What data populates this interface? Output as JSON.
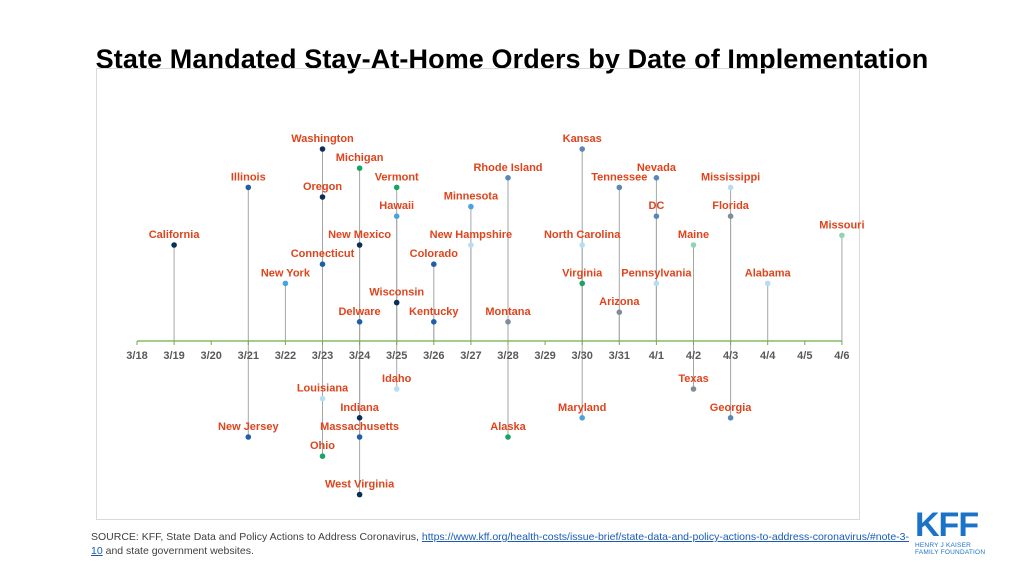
{
  "title": "State Mandated Stay-At-Home Orders by Date of Implementation",
  "source": {
    "prefix": "SOURCE: KFF, State Data and Policy Actions to Address Coronavirus, ",
    "link_text": "https://www.kff.org/health-costs/issue-brief/state-data-and-policy-actions-to-address-coronavirus/#note-3-10",
    "suffix": " and state government websites."
  },
  "logo": {
    "mark": "KFF",
    "line1": "HENRY J KAISER",
    "line2": "FAMILY FOUNDATION"
  },
  "colors": {
    "label": "#e0441c",
    "axis": "#70ad47",
    "stem": "#a6a6a6",
    "tick_label": "#595959",
    "navy": "#0b2e59",
    "blue": "#1f5fa8",
    "sky": "#4aa3df",
    "pale": "#b7dcf4",
    "green": "#19a463",
    "mint": "#8fd4b4",
    "gray": "#7f8c99",
    "steel": "#5b87b8",
    "logo": "#1b73c9"
  },
  "chart_data": {
    "type": "scatter",
    "title": "State Mandated Stay-At-Home Orders by Date of Implementation",
    "xlabel": "",
    "ylabel": "",
    "x_ticks": [
      "3/18",
      "3/19",
      "3/20",
      "3/21",
      "3/22",
      "3/23",
      "3/24",
      "3/25",
      "3/26",
      "3/27",
      "3/28",
      "3/29",
      "3/30",
      "3/31",
      "4/1",
      "4/2",
      "4/3",
      "4/4",
      "4/5",
      "4/6"
    ],
    "grid": false,
    "legend": "none",
    "points": [
      {
        "state": "California",
        "date": "3/19",
        "level": 5,
        "color": "navy"
      },
      {
        "state": "Illinois",
        "date": "3/21",
        "level": 8,
        "color": "blue"
      },
      {
        "state": "New Jersey",
        "date": "3/21",
        "level": -5,
        "color": "blue"
      },
      {
        "state": "New York",
        "date": "3/22",
        "level": 3,
        "color": "sky"
      },
      {
        "state": "Washington",
        "date": "3/23",
        "level": 10,
        "color": "navy"
      },
      {
        "state": "Oregon",
        "date": "3/23",
        "level": 7.5,
        "color": "navy"
      },
      {
        "state": "Connecticut",
        "date": "3/23",
        "level": 4,
        "color": "blue"
      },
      {
        "state": "Louisiana",
        "date": "3/23",
        "level": -3,
        "color": "pale"
      },
      {
        "state": "Ohio",
        "date": "3/23",
        "level": -6,
        "color": "green"
      },
      {
        "state": "Michigan",
        "date": "3/24",
        "level": 9,
        "color": "green"
      },
      {
        "state": "New Mexico",
        "date": "3/24",
        "level": 5,
        "color": "navy"
      },
      {
        "state": "Delware",
        "date": "3/24",
        "level": 1,
        "color": "blue"
      },
      {
        "state": "Indiana",
        "date": "3/24",
        "level": -4,
        "color": "navy"
      },
      {
        "state": "Massachusetts",
        "date": "3/24",
        "level": -5,
        "color": "blue"
      },
      {
        "state": "West Virginia",
        "date": "3/24",
        "level": -8,
        "color": "navy"
      },
      {
        "state": "Vermont",
        "date": "3/25",
        "level": 8,
        "color": "green"
      },
      {
        "state": "Hawaii",
        "date": "3/25",
        "level": 6.5,
        "color": "sky"
      },
      {
        "state": "Wisconsin",
        "date": "3/25",
        "level": 2,
        "color": "navy"
      },
      {
        "state": "Idaho",
        "date": "3/25",
        "level": -2.5,
        "color": "pale"
      },
      {
        "state": "Colorado",
        "date": "3/26",
        "level": 4,
        "color": "blue"
      },
      {
        "state": "Kentucky",
        "date": "3/26",
        "level": 1,
        "color": "blue"
      },
      {
        "state": "Minnesota",
        "date": "3/27",
        "level": 7,
        "color": "sky"
      },
      {
        "state": "New Hampshire",
        "date": "3/27",
        "level": 5,
        "color": "pale"
      },
      {
        "state": "Rhode Island",
        "date": "3/28",
        "level": 8.5,
        "color": "steel"
      },
      {
        "state": "Montana",
        "date": "3/28",
        "level": 1,
        "color": "gray"
      },
      {
        "state": "Alaska",
        "date": "3/28",
        "level": -5,
        "color": "green"
      },
      {
        "state": "Kansas",
        "date": "3/30",
        "level": 10,
        "color": "steel"
      },
      {
        "state": "North Carolina",
        "date": "3/30",
        "level": 5,
        "color": "pale"
      },
      {
        "state": "Virginia",
        "date": "3/30",
        "level": 3,
        "color": "green"
      },
      {
        "state": "Maryland",
        "date": "3/30",
        "level": -4,
        "color": "sky"
      },
      {
        "state": "Tennessee",
        "date": "3/31",
        "level": 8,
        "color": "steel"
      },
      {
        "state": "Arizona",
        "date": "3/31",
        "level": 1.5,
        "color": "gray"
      },
      {
        "state": "Nevada",
        "date": "4/1",
        "level": 8.5,
        "color": "steel"
      },
      {
        "state": "DC",
        "date": "4/1",
        "level": 6.5,
        "color": "steel"
      },
      {
        "state": "Pennsylvania",
        "date": "4/1",
        "level": 3,
        "color": "pale"
      },
      {
        "state": "Texas",
        "date": "4/2",
        "level": -2.5,
        "color": "gray"
      },
      {
        "state": "Maine",
        "date": "4/2",
        "level": 5,
        "color": "mint"
      },
      {
        "state": "Mississippi",
        "date": "4/3",
        "level": 8,
        "color": "pale"
      },
      {
        "state": "Florida",
        "date": "4/3",
        "level": 6.5,
        "color": "gray"
      },
      {
        "state": "Georgia",
        "date": "4/3",
        "level": -4,
        "color": "steel"
      },
      {
        "state": "Alabama",
        "date": "4/4",
        "level": 3,
        "color": "pale"
      },
      {
        "state": "Missouri",
        "date": "4/6",
        "level": 5.5,
        "color": "mint"
      }
    ]
  }
}
